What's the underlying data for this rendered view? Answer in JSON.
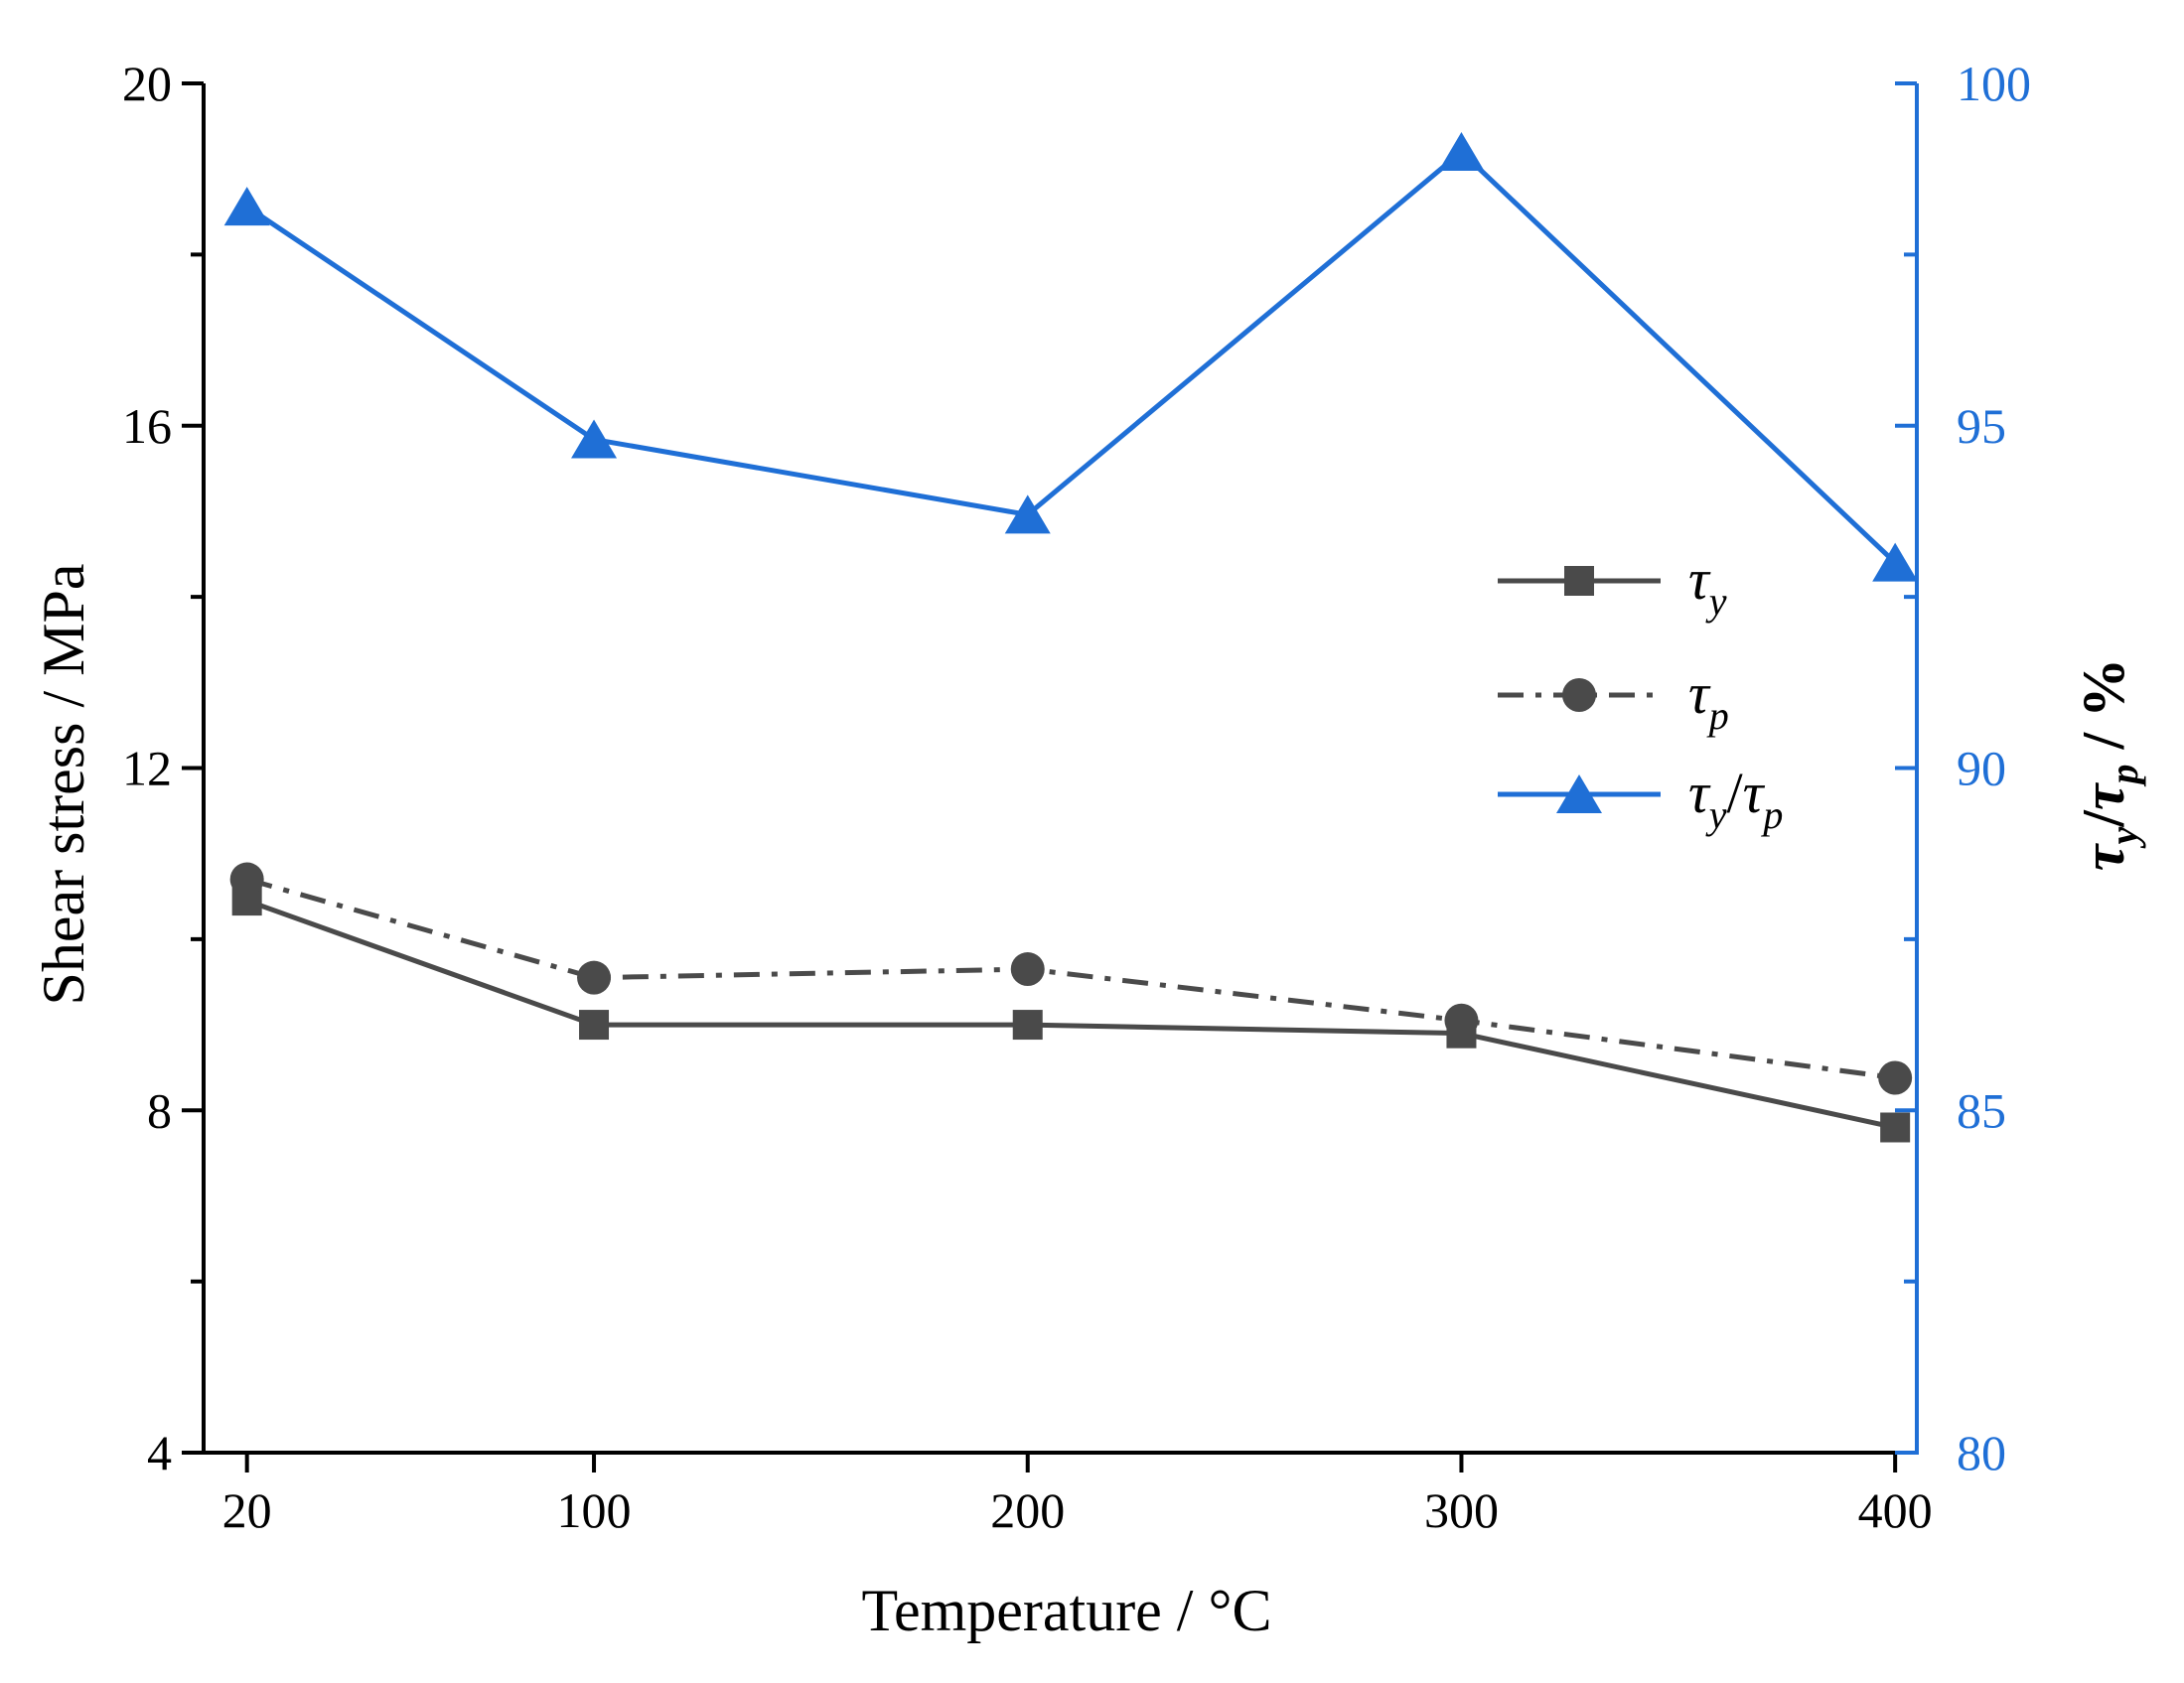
{
  "chart_data": {
    "type": "line",
    "title": "",
    "xlabel": "Temperature / °C",
    "ylabel_left": "Shear stress / MPa",
    "ylabel_right": {
      "sym1": "τ",
      "sub1": "y",
      "sep": "/",
      "sym2": "τ",
      "sub2": "p",
      "unit": " / %"
    },
    "x_ticks": [
      "20",
      "100",
      "200",
      "300",
      "400"
    ],
    "x": [
      20,
      100,
      200,
      300,
      400
    ],
    "xlim": [
      10,
      405
    ],
    "ylim_left": [
      4,
      20
    ],
    "y_ticks_left": [
      "4",
      "8",
      "12",
      "16",
      "20"
    ],
    "ylim_right": [
      80,
      100
    ],
    "y_ticks_right": [
      "80",
      "85",
      "90",
      "95",
      "100"
    ],
    "legend_position": "center-right",
    "series": [
      {
        "id": "tau_y",
        "sym": "τ",
        "sub": "y",
        "axis": "left",
        "marker": "square",
        "line": "solid",
        "color": "#4a4a4a",
        "values": [
          10.45,
          9.0,
          9.0,
          8.9,
          7.8
        ]
      },
      {
        "id": "tau_p",
        "sym": "τ",
        "sub": "p",
        "axis": "left",
        "marker": "circle",
        "line": "dashdot",
        "color": "#4a4a4a",
        "values": [
          10.7,
          9.55,
          9.65,
          9.05,
          8.38
        ]
      },
      {
        "id": "ratio",
        "sym": "τ",
        "sub": "y",
        "sep": "/",
        "sym2": "τ",
        "sub2": "p",
        "axis": "right",
        "marker": "triangle",
        "line": "solid",
        "color": "#1f6fd6",
        "values": [
          98.2,
          94.8,
          93.7,
          99.0,
          93.0
        ]
      }
    ],
    "colors": {
      "axis_left": "#000000",
      "axis_right": "#1f6fd6"
    }
  }
}
